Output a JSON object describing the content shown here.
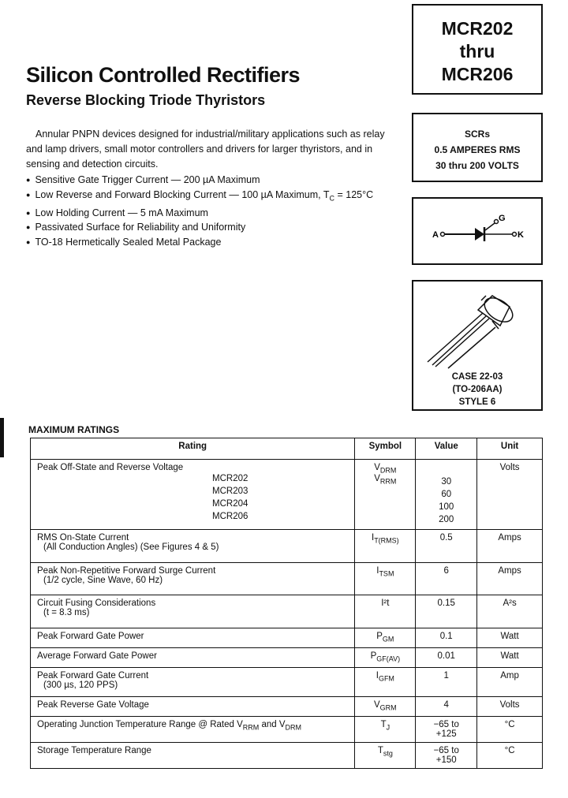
{
  "header": {
    "title": "Silicon Controlled Rectifiers",
    "subtitle": "Reverse Blocking Triode Thyristors"
  },
  "part_box": {
    "line1": "MCR202",
    "line2": "thru",
    "line3": "MCR206"
  },
  "spec_box": {
    "line1": "SCRs",
    "line2": "0.5 AMPERES RMS",
    "line3": "30 thru 200 VOLTS"
  },
  "symbol": {
    "anode": "A",
    "gate": "G",
    "cathode": "K",
    "icon": "scr-thyristor-symbol"
  },
  "package": {
    "icon": "to-18-metal-can-package",
    "line1": "CASE 22-03",
    "line2": "(TO-206AA)",
    "line3": "STYLE 6"
  },
  "intro": "Annular PNPN devices designed for industrial/military applications such as relay and lamp drivers, small motor controllers and drivers for larger thyristors, and in sensing and detection circuits.",
  "features": [
    "Sensitive Gate Trigger Current — 200 µA Maximum",
    "Low Reverse and Forward Blocking Current — 100 µA Maximum, T",
    "Low Holding Current — 5 mA Maximum",
    "Passivated Surface for Reliability and Uniformity",
    "TO-18 Hermetically Sealed Metal Package"
  ],
  "feature2_sub": "C",
  "feature2_tail": " = 125°C",
  "ratings": {
    "heading": "MAXIMUM RATINGS",
    "columns": [
      "Rating",
      "Symbol",
      "Value",
      "Unit"
    ],
    "voltage": {
      "rating": "Peak Off-State and Reverse Voltage",
      "models": [
        "MCR202",
        "MCR203",
        "MCR204",
        "MCR206"
      ],
      "sym1": "V",
      "sym1_sub": "DRM",
      "sym2": "V",
      "sym2_sub": "RRM",
      "values": [
        "30",
        "60",
        "100",
        "200"
      ],
      "unit": "Volts"
    },
    "rows": [
      {
        "rating": "RMS On-State Current",
        "note": "(All Conduction Angles) (See Figures 4 & 5)",
        "sym": "I",
        "sub": "T(RMS)",
        "value": "0.5",
        "unit": "Amps"
      },
      {
        "rating": "Peak Non-Repetitive Forward Surge Current",
        "note": "(1/2 cycle, Sine Wave, 60 Hz)",
        "sym": "I",
        "sub": "TSM",
        "value": "6",
        "unit": "Amps"
      },
      {
        "rating": "Circuit Fusing Considerations",
        "note": "(t = 8.3 ms)",
        "sym": "I²t",
        "sub": "",
        "value": "0.15",
        "unit": "A²s"
      },
      {
        "rating": "Peak Forward Gate Power",
        "note": "",
        "sym": "P",
        "sub": "GM",
        "value": "0.1",
        "unit": "Watt"
      },
      {
        "rating": "Average Forward Gate Power",
        "note": "",
        "sym": "P",
        "sub": "GF(AV)",
        "value": "0.01",
        "unit": "Watt"
      },
      {
        "rating": "Peak Forward Gate Current",
        "note": "(300 µs, 120 PPS)",
        "sym": "I",
        "sub": "GFM",
        "value": "1",
        "unit": "Amp"
      },
      {
        "rating": "Peak Reverse Gate Voltage",
        "note": "",
        "sym": "V",
        "sub": "GRM",
        "value": "4",
        "unit": "Volts"
      },
      {
        "rating": "Operating Junction Temperature Range @ Rated V",
        "note": "",
        "sym": "T",
        "sub": "J",
        "value": "−65 to +125",
        "unit": "°C"
      },
      {
        "rating": "Storage Temperature Range",
        "note": "",
        "sym": "T",
        "sub": "stg",
        "value": "−65 to +150",
        "unit": "°C"
      }
    ],
    "op_tail_sub1": "RRM",
    "op_tail_mid": " and V",
    "op_tail_sub2": "DRM"
  }
}
